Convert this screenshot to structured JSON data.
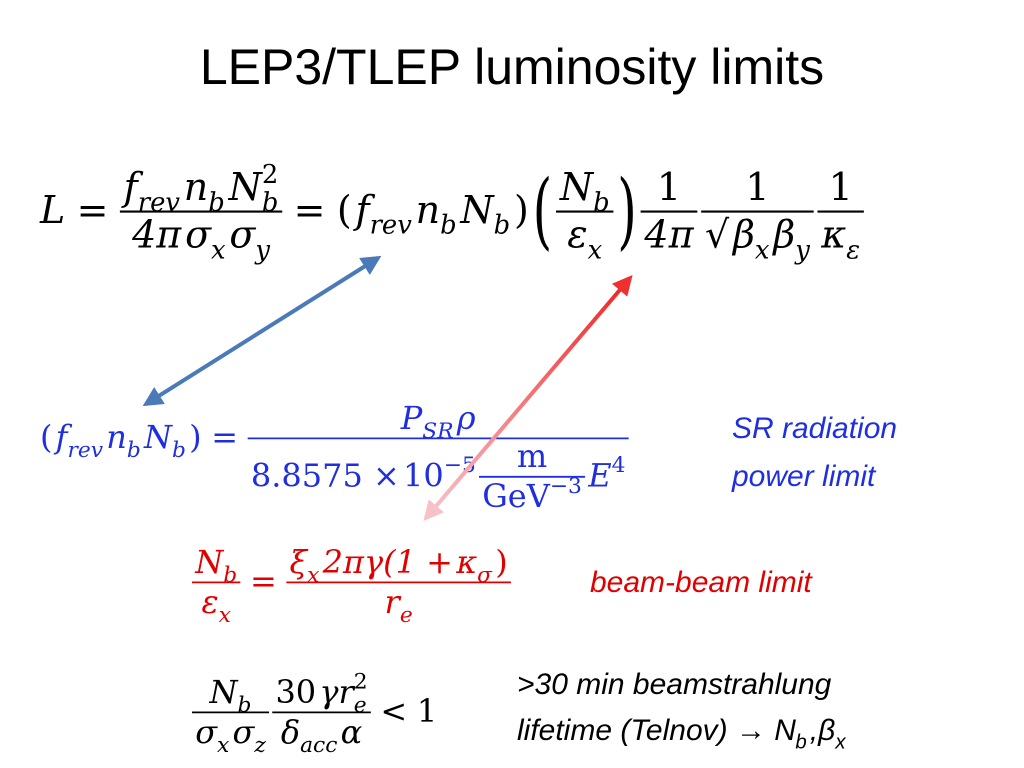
{
  "title": "LEP3/TLEP luminosity limits",
  "luminosity_equation": {
    "color": "#000000",
    "items": [
      "L",
      "=",
      {
        "num": [
          {
            "t": "f",
            "sub": "rev"
          },
          {
            "t": "n",
            "sub": "b"
          },
          {
            "t": "N",
            "sub": "b",
            "sup": "2"
          }
        ],
        "den": [
          "4π",
          {
            "t": "σ",
            "sub": "x"
          },
          {
            "t": "σ",
            "sub": "y"
          }
        ]
      },
      "=",
      "(",
      {
        "t": "f",
        "sub": "rev"
      },
      {
        "t": "n",
        "sub": "b"
      },
      {
        "t": "N",
        "sub": "b"
      },
      ")",
      "(",
      {
        "num": [
          {
            "t": "N",
            "sub": "b"
          }
        ],
        "den": [
          {
            "t": "ε",
            "sub": "x"
          }
        ]
      },
      ")",
      {
        "num": [
          "1"
        ],
        "den": [
          "4π"
        ]
      },
      {
        "num": [
          "1"
        ],
        "den": [
          "√",
          {
            "t": "β",
            "sub": "x"
          },
          {
            "t": "β",
            "sub": "y"
          }
        ]
      },
      {
        "num": [
          "1"
        ],
        "den": [
          {
            "t": "κ",
            "sub": "ε"
          }
        ]
      }
    ]
  },
  "sr_equation": {
    "color": "#1f2fe0",
    "items": [
      "(",
      {
        "t": "f",
        "sub": "rev"
      },
      {
        "t": "n",
        "sub": "b"
      },
      {
        "t": "N",
        "sub": "b"
      },
      ")",
      "=",
      {
        "num": [
          {
            "t": "P",
            "sub": "SR"
          },
          "ρ"
        ],
        "den": [
          "8.8575 ×",
          {
            "t": "10",
            "sup": "−5"
          },
          {
            "num": [
              "m"
            ],
            "den": [
              {
                "t": "GeV",
                "sup": "−3"
              }
            ]
          },
          {
            "t": "E",
            "sup": "4"
          }
        ]
      }
    ],
    "note": [
      [
        "SR radiation"
      ],
      [
        "power limit"
      ]
    ]
  },
  "beam_beam_equation": {
    "color": "#e00000",
    "items": [
      {
        "num": [
          {
            "t": "N",
            "sub": "b"
          }
        ],
        "den": [
          {
            "t": "ε",
            "sub": "x"
          }
        ]
      },
      "=",
      {
        "num": [
          {
            "t": "ξ",
            "sub": "x"
          },
          "2πγ(1 +",
          {
            "t": "κ",
            "sub": "σ"
          },
          ")"
        ],
        "den": [
          {
            "t": "r",
            "sub": "e"
          }
        ]
      }
    ],
    "note": [
      [
        "beam-beam limit"
      ]
    ]
  },
  "beamstrahlung_equation": {
    "color": "#000000",
    "items": [
      {
        "num": [
          {
            "t": "N",
            "sub": "b"
          }
        ],
        "den": [
          {
            "t": "σ",
            "sub": "x"
          },
          {
            "t": "σ",
            "sub": "z"
          }
        ]
      },
      {
        "num": [
          "30",
          {
            "t": "γr",
            "sub": "e",
            "sup": "2"
          }
        ],
        "den": [
          {
            "t": "δ",
            "sub": "acc"
          },
          "α"
        ]
      },
      "<",
      "1"
    ],
    "note": [
      [
        ">30 min beamstrahlung"
      ],
      [
        {
          "t": "lifetime (Telnov) → N",
          "sub": "b"
        },
        {
          "t": ",β",
          "sub": "x"
        }
      ]
    ]
  }
}
